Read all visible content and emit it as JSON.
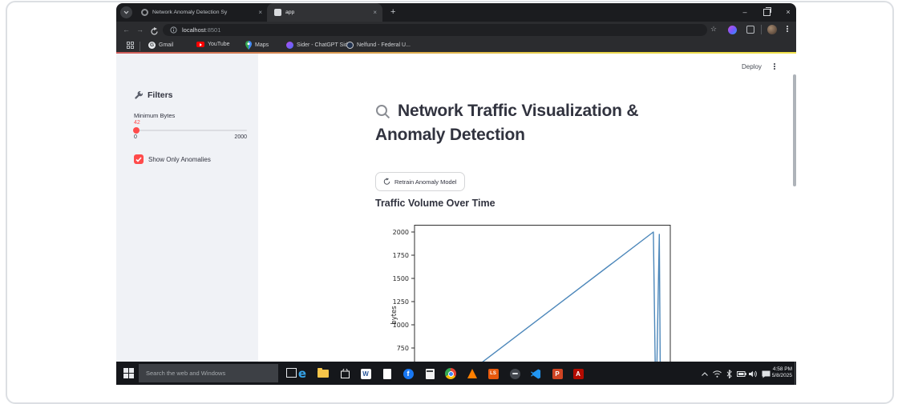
{
  "browser": {
    "tabs": [
      {
        "title": "Network Anomaly Detection Sy",
        "favicon": "gear-icon",
        "active": false
      },
      {
        "title": "app",
        "favicon": "streamlit-app-icon",
        "active": true
      }
    ],
    "glyphs": {
      "new_tab": "+",
      "tab_close": "×",
      "minimize": "–",
      "close": "×",
      "back": "←",
      "forward": "→",
      "star": "☆"
    },
    "url": {
      "host": "localhost",
      "port": ":8501"
    },
    "bookmarks": [
      {
        "label": "Gmail",
        "icon": "gmail-icon"
      },
      {
        "label": "YouTube",
        "icon": "youtube-icon"
      },
      {
        "label": "Maps",
        "icon": "maps-pin-icon"
      },
      {
        "label": "Sider - ChatGPT Sid...",
        "icon": "sider-icon"
      },
      {
        "label": "Nelfund - Federal U...",
        "icon": "globe-icon"
      }
    ]
  },
  "app": {
    "deploy_label": "Deploy",
    "sidebar": {
      "filters_heading": "Filters",
      "slider": {
        "label": "Minimum Bytes",
        "value": "42",
        "min": "0",
        "max": "2000"
      },
      "checkbox": {
        "label": "Show Only Anomalies",
        "checked": true
      }
    },
    "main": {
      "title_line1": "Network Traffic Visualization &",
      "title_line2": "Anomaly Detection",
      "retrain_button_label": "Retrain Anomaly Model",
      "section_title": "Traffic Volume Over Time"
    },
    "colors": {
      "accent_red": "#ff4b4b",
      "sidebar_bg": "#f0f2f6",
      "text": "#31333f"
    }
  },
  "chart_data": {
    "type": "line",
    "title": "Traffic Volume Over Time",
    "xlabel": "",
    "ylabel": "bytes",
    "yticks": [
      750,
      1000,
      1250,
      1500,
      1750,
      2000
    ],
    "ylim": [
      600,
      2080
    ],
    "x_tick_labels_visible": false,
    "grid": false,
    "legend": false,
    "series": [
      {
        "name": "bytes",
        "color": "#4c87ba",
        "points": [
          [
            0.0,
            42
          ],
          [
            0.934,
            2000
          ],
          [
            0.944,
            0
          ],
          [
            0.957,
            1975
          ],
          [
            0.962,
            0
          ]
        ]
      }
    ]
  },
  "taskbar": {
    "search_placeholder": "Search the web and Windows",
    "icons": [
      "start",
      "task-view",
      "edge",
      "file-explorer",
      "store",
      "word",
      "document",
      "facebook",
      "calculator",
      "chrome",
      "vlc",
      "ls-app",
      "browser-app",
      "vscode",
      "powerpoint",
      "acrobat"
    ],
    "tray_icons": [
      "chevron-up",
      "network",
      "bluetooth",
      "battery",
      "volume",
      "action-center"
    ],
    "time": "4:58 PM",
    "date": "5/8/2025"
  }
}
